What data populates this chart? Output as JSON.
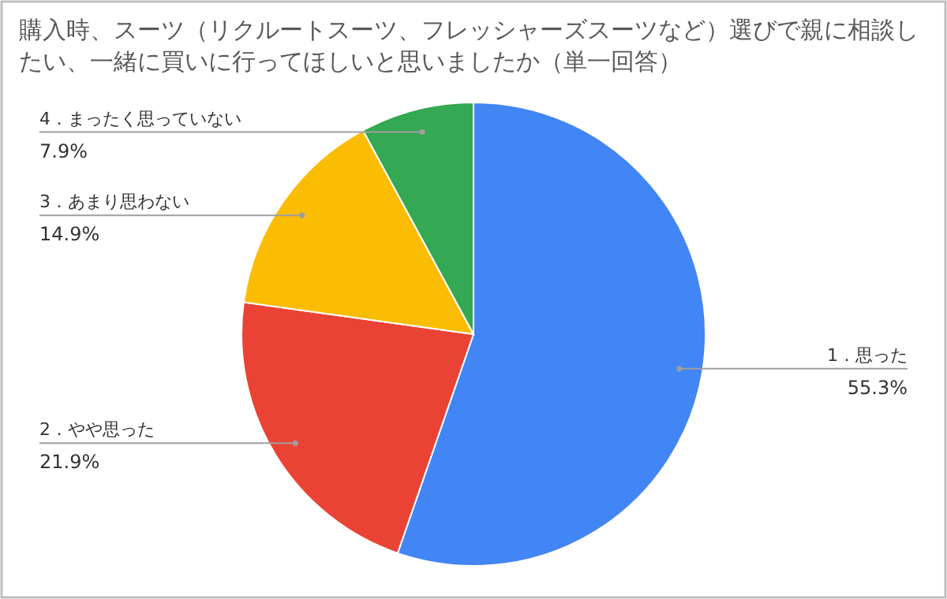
{
  "chart_data": {
    "type": "pie",
    "title": "購入時、スーツ（リクルートスーツ、フレッシャーズスーツなど）選びで親に相談したい、一緒に買いに行ってほしいと思いましたか（単一回答）",
    "categories": [
      "1．思った",
      "2．やや思った",
      "3．あまり思わない",
      "4．まったく思っていない"
    ],
    "values": [
      55.3,
      21.9,
      14.9,
      7.9
    ],
    "value_labels": [
      "55.3%",
      "21.9%",
      "14.9%",
      "7.9%"
    ],
    "colors": [
      "#4285f4",
      "#ea4335",
      "#fbbc04",
      "#34a853"
    ]
  }
}
